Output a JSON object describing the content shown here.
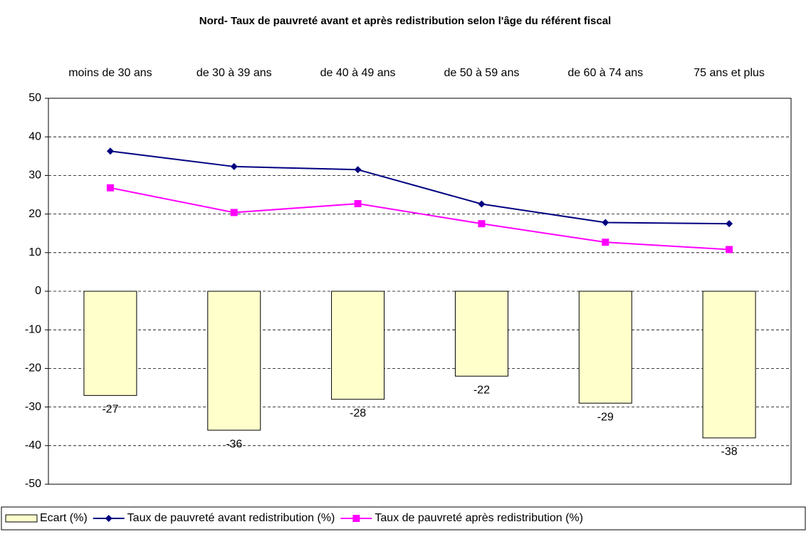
{
  "chart_data": {
    "type": "bar-line",
    "title": "Nord- Taux de pauvreté avant et après redistribution selon l'âge du référent fiscal",
    "categories": [
      "moins de 30 ans",
      "de 30 à 39 ans",
      "de 40 à 49 ans",
      "de 50 à 59 ans",
      "de 60 à 74 ans",
      "75 ans et plus"
    ],
    "series": [
      {
        "name": "Ecart (%)",
        "type": "bar",
        "color": "#ffffcc",
        "values": [
          -27,
          -36,
          -28,
          -22,
          -29,
          -38
        ]
      },
      {
        "name": "Taux de pauvreté avant redistribution (%)",
        "type": "line",
        "marker": "diamond",
        "color": "#000080",
        "values": [
          36.3,
          32.3,
          31.5,
          22.6,
          17.8,
          17.5
        ]
      },
      {
        "name": "Taux de pauvreté après redistribution (%)",
        "type": "line",
        "marker": "square",
        "color": "#ff00ff",
        "values": [
          26.8,
          20.4,
          22.7,
          17.5,
          12.7,
          10.8
        ]
      }
    ],
    "ylim": [
      -50,
      50
    ],
    "yticks": [
      -50,
      -40,
      -30,
      -20,
      -10,
      0,
      10,
      20,
      30,
      40,
      50
    ],
    "grid": true,
    "legend": "bottom"
  }
}
